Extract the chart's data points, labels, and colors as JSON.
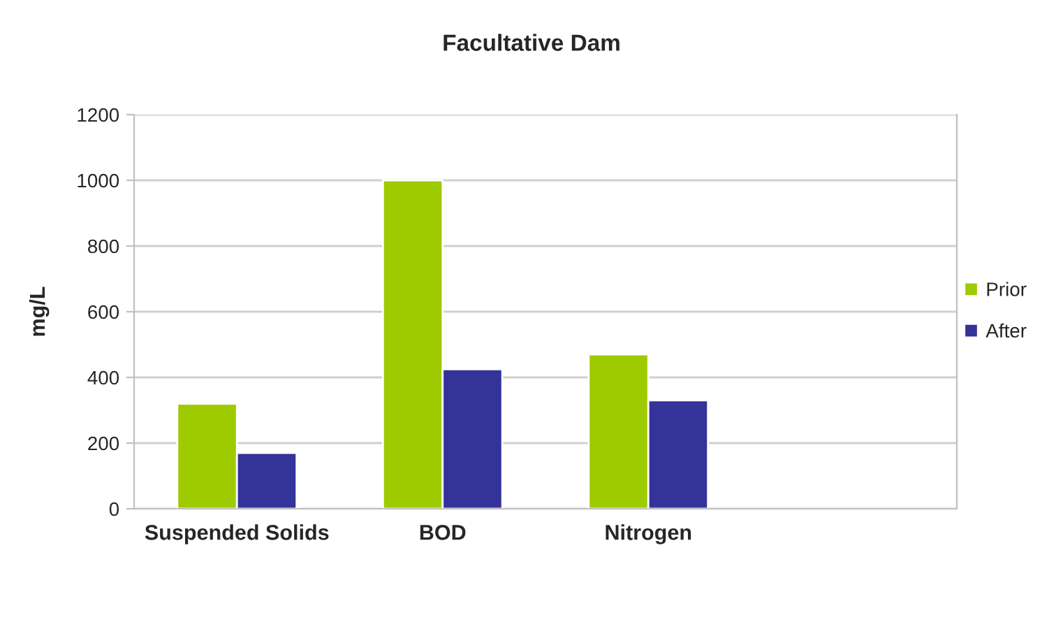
{
  "chart_data": {
    "type": "bar",
    "title": "Facultative Dam",
    "ylabel": "mg/L",
    "categories": [
      "Suspended Solids",
      "BOD",
      "Nitrogen",
      null
    ],
    "series": [
      {
        "name": "Prior",
        "color": "#9ecb00",
        "values": [
          320,
          1000,
          470,
          null
        ]
      },
      {
        "name": "After",
        "color": "#333399",
        "values": [
          170,
          425,
          330,
          null
        ]
      }
    ],
    "ylim": [
      0,
      1200
    ],
    "yticks": [
      0,
      200,
      400,
      600,
      800,
      1000,
      1200
    ],
    "grid": "y",
    "legend": "right"
  }
}
